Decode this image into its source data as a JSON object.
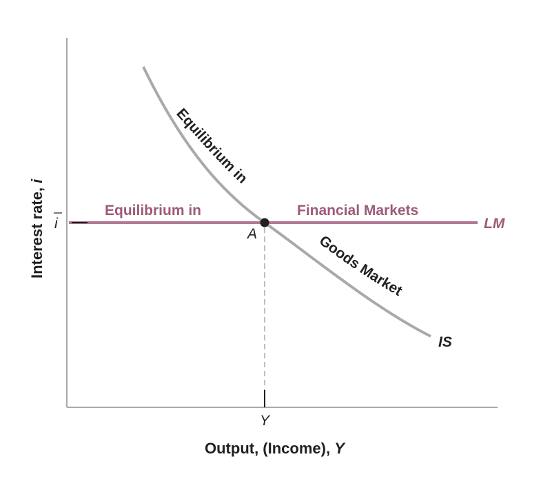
{
  "diagram": {
    "y_axis_label_text": "Interest rate, ",
    "y_axis_label_var": "i",
    "x_axis_label_text": "Output, (Income), ",
    "x_axis_label_var": "Y",
    "i_bar_label": "i",
    "y_tick_label": "Y",
    "point_label": "A",
    "lm_label": "LM",
    "is_label": "IS",
    "lm_text_left": "Equilibrium in",
    "lm_text_right": "Financial Markets",
    "is_text_upper": "Equilibrium in",
    "is_text_lower": "Goods Market",
    "colors": {
      "lm": "#b07a94",
      "lm_text": "#9c5a7a",
      "is": "#a7a9ac",
      "axis": "#a7a9ac",
      "ink": "#231f20"
    }
  }
}
